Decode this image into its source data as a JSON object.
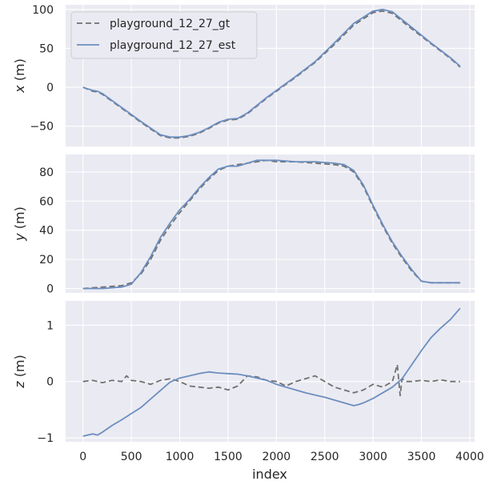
{
  "chart_data": {
    "type": "line",
    "xlabel": "index",
    "xlim": [
      -180,
      4050
    ],
    "xticks": [
      0,
      500,
      1000,
      1500,
      2000,
      2500,
      3000,
      3500,
      4000
    ],
    "xtick_labels": [
      "0",
      "500",
      "1000",
      "1500",
      "2000",
      "2500",
      "3000",
      "3500",
      "4000"
    ],
    "legend": {
      "placement": "top-left",
      "panel": 0
    },
    "grid": true,
    "series_styles": {
      "gt": {
        "label": "playground_12_27_gt",
        "color": "#707070",
        "dash": "7,4"
      },
      "est": {
        "label": "playground_12_27_est",
        "color": "#6c8ebf",
        "dash": ""
      }
    },
    "panels": [
      {
        "ylabel_var": "x",
        "ylabel_unit": " (m)",
        "ylim": [
          -76,
          106
        ],
        "yticks": [
          100,
          50,
          0,
          -50
        ],
        "ytick_labels": [
          "100",
          "50",
          "0",
          "−50"
        ],
        "series": [
          {
            "key": "gt",
            "x": [
              0,
              100,
              150,
              200,
              400,
              600,
              800,
              900,
              1000,
              1100,
              1200,
              1300,
              1400,
              1500,
              1600,
              1700,
              1800,
              1900,
              2000,
              2200,
              2400,
              2600,
              2800,
              3000,
              3100,
              3200,
              3400,
              3600,
              3800,
              3900
            ],
            "y": [
              0,
              -5,
              -6,
              -9,
              -27,
              -45,
              -62,
              -65,
              -65,
              -63,
              -59,
              -53,
              -46,
              -42,
              -41,
              -34,
              -24,
              -14,
              -5,
              13,
              32,
              55,
              80,
              96,
              98,
              95,
              75,
              56,
              37,
              26
            ]
          },
          {
            "key": "est",
            "x": [
              0,
              100,
              150,
              200,
              400,
              600,
              800,
              900,
              1000,
              1100,
              1200,
              1300,
              1400,
              1500,
              1600,
              1700,
              1800,
              1900,
              2000,
              2200,
              2400,
              2600,
              2800,
              3000,
              3100,
              3200,
              3400,
              3600,
              3800,
              3900
            ],
            "y": [
              0,
              -4,
              -5,
              -8,
              -26,
              -44,
              -61,
              -64,
              -64,
              -62,
              -58,
              -52,
              -45,
              -41,
              -40,
              -33,
              -23,
              -13,
              -4,
              14,
              33,
              57,
              82,
              98,
              100,
              97,
              77,
              57,
              38,
              27
            ]
          }
        ]
      },
      {
        "ylabel_var": "y",
        "ylabel_unit": " (m)",
        "ylim": [
          -3,
          92
        ],
        "yticks": [
          80,
          60,
          40,
          20,
          0
        ],
        "ytick_labels": [
          "80",
          "60",
          "40",
          "20",
          "0"
        ],
        "series": [
          {
            "key": "gt",
            "x": [
              0,
              200,
              400,
              500,
              600,
              700,
              800,
              900,
              1000,
              1100,
              1200,
              1300,
              1400,
              1500,
              1600,
              1700,
              1800,
              1900,
              2000,
              2200,
              2400,
              2600,
              2700,
              2800,
              2900,
              3000,
              3100,
              3200,
              3300,
              3400,
              3500,
              3600,
              3700,
              3800,
              3900
            ],
            "y": [
              0,
              1,
              2,
              4,
              10,
              20,
              33,
              43,
              52,
              60,
              68,
              75,
              81,
              84,
              85,
              86,
              87,
              88,
              87,
              87,
              86,
              85,
              84,
              80,
              70,
              56,
              43,
              31,
              21,
              12,
              5,
              4,
              4,
              4,
              4
            ]
          },
          {
            "key": "est",
            "x": [
              0,
              200,
              400,
              500,
              600,
              700,
              800,
              900,
              1000,
              1100,
              1200,
              1300,
              1400,
              1500,
              1600,
              1700,
              1800,
              1900,
              2000,
              2200,
              2400,
              2600,
              2700,
              2800,
              2900,
              3000,
              3100,
              3200,
              3300,
              3400,
              3500,
              3600,
              3700,
              3800,
              3900
            ],
            "y": [
              0,
              0,
              1,
              3,
              11,
              22,
              35,
              45,
              54,
              61,
              69,
              76,
              82,
              84,
              84,
              86,
              88,
              88,
              88,
              87,
              87,
              86,
              85,
              81,
              71,
              57,
              44,
              32,
              22,
              13,
              5,
              4,
              4,
              4,
              4
            ]
          }
        ]
      },
      {
        "ylabel_var": "z",
        "ylabel_unit": " (m)",
        "ylim": [
          -1.07,
          1.43
        ],
        "yticks": [
          1,
          0,
          -1
        ],
        "ytick_labels": [
          "1",
          "0",
          "−1"
        ],
        "series": [
          {
            "key": "gt",
            "x": [
              0,
              100,
              200,
              300,
              400,
              450,
              500,
              600,
              700,
              800,
              900,
              1000,
              1100,
              1200,
              1300,
              1400,
              1500,
              1600,
              1700,
              1800,
              1900,
              2000,
              2100,
              2200,
              2300,
              2400,
              2500,
              2600,
              2700,
              2800,
              2900,
              3000,
              3100,
              3200,
              3250,
              3280,
              3300,
              3350,
              3400,
              3500,
              3600,
              3700,
              3800,
              3900
            ],
            "y": [
              0,
              0.02,
              -0.02,
              0.02,
              0,
              0.1,
              0.02,
              0,
              -0.05,
              0.02,
              0.05,
              0,
              -0.08,
              -0.1,
              -0.12,
              -0.1,
              -0.15,
              -0.08,
              0.1,
              0.08,
              0.02,
              0,
              -0.08,
              0,
              0.05,
              0.1,
              0,
              -0.1,
              -0.15,
              -0.2,
              -0.15,
              -0.05,
              -0.1,
              0,
              0.3,
              -0.25,
              0.05,
              0,
              0,
              0.02,
              0,
              0.03,
              0,
              0
            ]
          },
          {
            "key": "est",
            "x": [
              0,
              100,
              150,
              200,
              300,
              400,
              500,
              600,
              700,
              800,
              900,
              1000,
              1100,
              1200,
              1300,
              1400,
              1500,
              1600,
              1700,
              1800,
              1900,
              2000,
              2100,
              2200,
              2300,
              2400,
              2500,
              2600,
              2700,
              2800,
              2850,
              2900,
              3000,
              3100,
              3200,
              3300,
              3400,
              3500,
              3600,
              3700,
              3800,
              3900
            ],
            "y": [
              -0.97,
              -0.93,
              -0.95,
              -0.9,
              -0.78,
              -0.68,
              -0.57,
              -0.46,
              -0.31,
              -0.16,
              -0.01,
              0.06,
              0.1,
              0.14,
              0.17,
              0.15,
              0.14,
              0.13,
              0.1,
              0.06,
              0.02,
              -0.05,
              -0.1,
              -0.15,
              -0.2,
              -0.24,
              -0.28,
              -0.33,
              -0.38,
              -0.43,
              -0.41,
              -0.38,
              -0.3,
              -0.2,
              -0.1,
              0.05,
              0.3,
              0.55,
              0.78,
              0.95,
              1.1,
              1.3
            ]
          }
        ]
      }
    ]
  }
}
